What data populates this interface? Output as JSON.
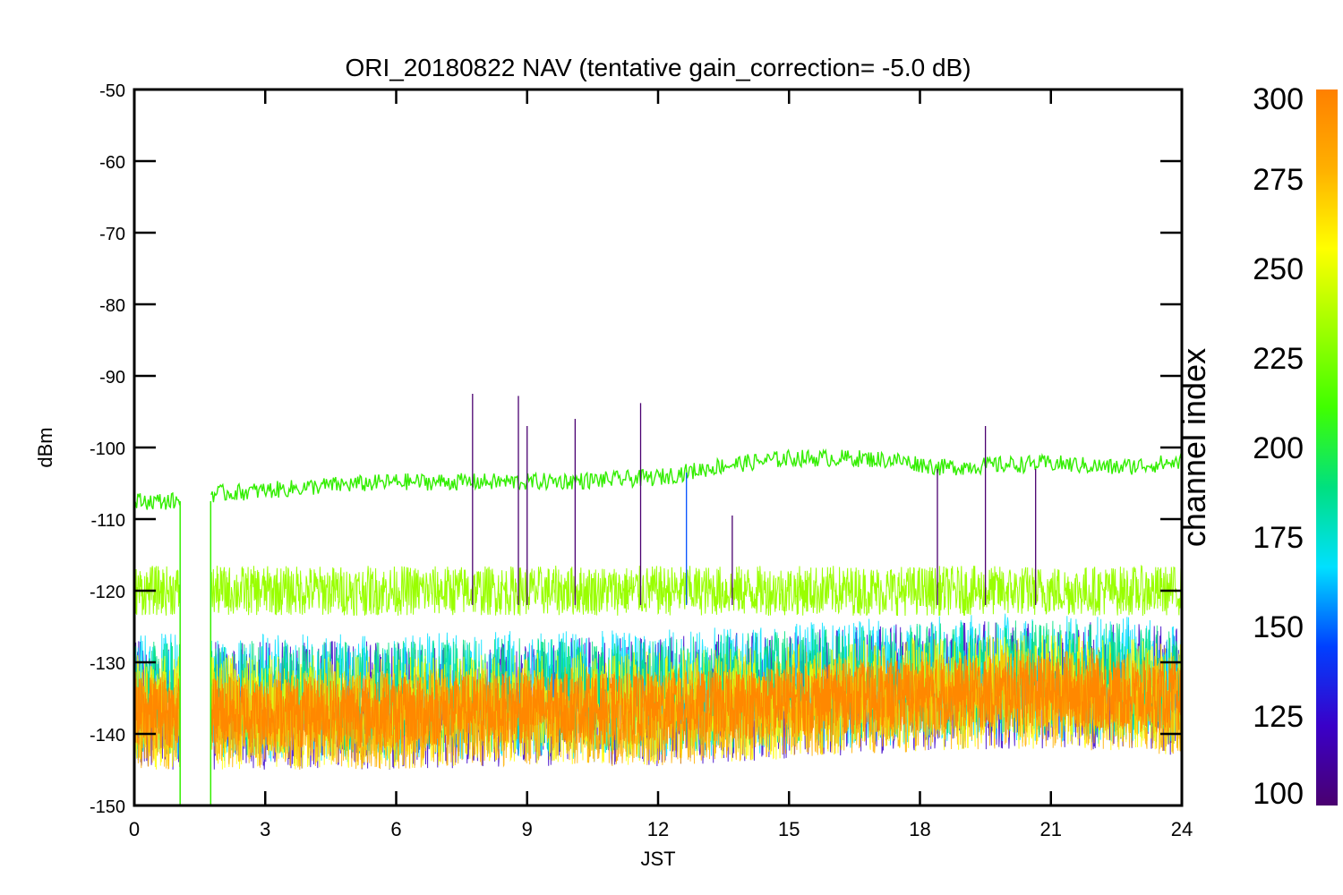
{
  "chart_data": {
    "type": "line",
    "title": "ORI_20180822 NAV (tentative gain_correction= -5.0 dB)",
    "xlabel": "JST",
    "ylabel": "dBm",
    "xlim": [
      0,
      24
    ],
    "ylim": [
      -150,
      -50
    ],
    "x_ticks": [
      0,
      3,
      6,
      9,
      12,
      15,
      18,
      21,
      24
    ],
    "y_ticks": [
      -50,
      -60,
      -70,
      -80,
      -90,
      -100,
      -110,
      -120,
      -130,
      -140,
      -150
    ],
    "data_gap_hours": [
      1.05,
      1.75
    ],
    "colorbar": {
      "label": "channel index",
      "range": [
        100,
        300
      ],
      "ticks": [
        300,
        275,
        250,
        225,
        200,
        175,
        150,
        125,
        100
      ],
      "colormap": "rainbow",
      "stops": [
        "#4a0070",
        "#3a00c8",
        "#0040ff",
        "#00e0ff",
        "#00e080",
        "#40ff00",
        "#a0ff00",
        "#ffff00",
        "#ffb000",
        "#ff8000"
      ]
    },
    "series": [
      {
        "channel_index": 240,
        "color": "#33ee00",
        "x": [
          0,
          1,
          1.75,
          3,
          4.5,
          6,
          7.5,
          9,
          10.5,
          12,
          13.5,
          15,
          16.5,
          17.5,
          18.5,
          19.5,
          21,
          22.5,
          24
        ],
        "y": [
          -107.5,
          -107.5,
          -106.5,
          -106,
          -105.3,
          -104.8,
          -104.8,
          -104.8,
          -104.6,
          -104.2,
          -102.5,
          -101.5,
          -101.5,
          -101.8,
          -102.8,
          -102.5,
          -102.2,
          -102.8,
          -102
        ]
      },
      {
        "channel_index": 260,
        "color": "#99ff00",
        "x": [
          0,
          3,
          6,
          9,
          12,
          15,
          18,
          21,
          24
        ],
        "y": [
          -120,
          -120,
          -120,
          -120,
          -120,
          -120,
          -120,
          -120,
          -120
        ]
      },
      {
        "channel_index": 295,
        "color": "#ff8800",
        "x": [
          0,
          3,
          6,
          9,
          12,
          15,
          18,
          21,
          24
        ],
        "y": [
          -137,
          -137,
          -137,
          -136.5,
          -136.5,
          -135.5,
          -134.5,
          -134,
          -135
        ]
      }
    ],
    "spikes": [
      {
        "x": 7.75,
        "y": -92.5,
        "color": "#4a0070"
      },
      {
        "x": 8.8,
        "y": -92.8,
        "color": "#4a0070"
      },
      {
        "x": 9.0,
        "y": -97,
        "color": "#4a0070"
      },
      {
        "x": 10.1,
        "y": -96,
        "color": "#4a0070"
      },
      {
        "x": 11.6,
        "y": -93.8,
        "color": "#4a0070"
      },
      {
        "x": 12.65,
        "y": -103.5,
        "color": "#0050ff"
      },
      {
        "x": 13.7,
        "y": -109.5,
        "color": "#4a0070"
      },
      {
        "x": 18.4,
        "y": -103,
        "color": "#4a0070"
      },
      {
        "x": 19.5,
        "y": -97,
        "color": "#4a0070"
      },
      {
        "x": 20.65,
        "y": -103,
        "color": "#4a0070"
      }
    ]
  }
}
